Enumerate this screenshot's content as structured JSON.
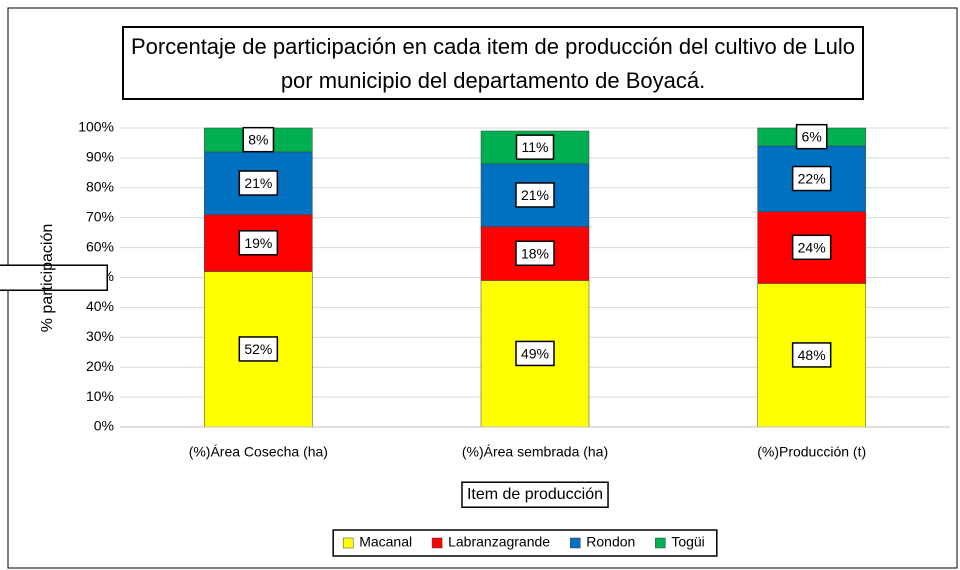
{
  "chart_data": {
    "type": "stacked_bar",
    "title": "Porcentaje de participación en cada item de producción del cultivo de Lulo por municipio del departamento de Boyacá.",
    "x_label": "Item de producción",
    "y_label": "% participación",
    "categories": [
      "(%)Área Cosecha (ha)",
      "(%)Área sembrada (ha)",
      "(%)Producción (t)"
    ],
    "series": [
      {
        "name": "Macanal",
        "color": "#ffff00",
        "values": [
          52,
          49,
          48
        ],
        "value_labels": [
          "52%",
          "49%",
          "48%"
        ]
      },
      {
        "name": "Labranzagrande",
        "color": "#ff0000",
        "values": [
          19,
          18,
          24
        ],
        "value_labels": [
          "19%",
          "18%",
          "24%"
        ]
      },
      {
        "name": "Rondon",
        "color": "#0070c0",
        "values": [
          21,
          21,
          22
        ],
        "value_labels": [
          "21%",
          "21%",
          "22%"
        ]
      },
      {
        "name": "Togüi",
        "color": "#00b050",
        "values": [
          8,
          11,
          6
        ],
        "value_labels": [
          "8%",
          "11%",
          "6%"
        ]
      }
    ],
    "ylim": [
      0,
      100
    ],
    "yticks": [
      {
        "value": 0,
        "label": "0%"
      },
      {
        "value": 10,
        "label": "10%"
      },
      {
        "value": 20,
        "label": "20%"
      },
      {
        "value": 30,
        "label": "30%"
      },
      {
        "value": 40,
        "label": "40%"
      },
      {
        "value": 50,
        "label": "50%"
      },
      {
        "value": 60,
        "label": "60%"
      },
      {
        "value": 70,
        "label": "70%"
      },
      {
        "value": 80,
        "label": "80%"
      },
      {
        "value": 90,
        "label": "90%"
      },
      {
        "value": 100,
        "label": "100%"
      }
    ],
    "grid": true,
    "legend": "bottom"
  }
}
